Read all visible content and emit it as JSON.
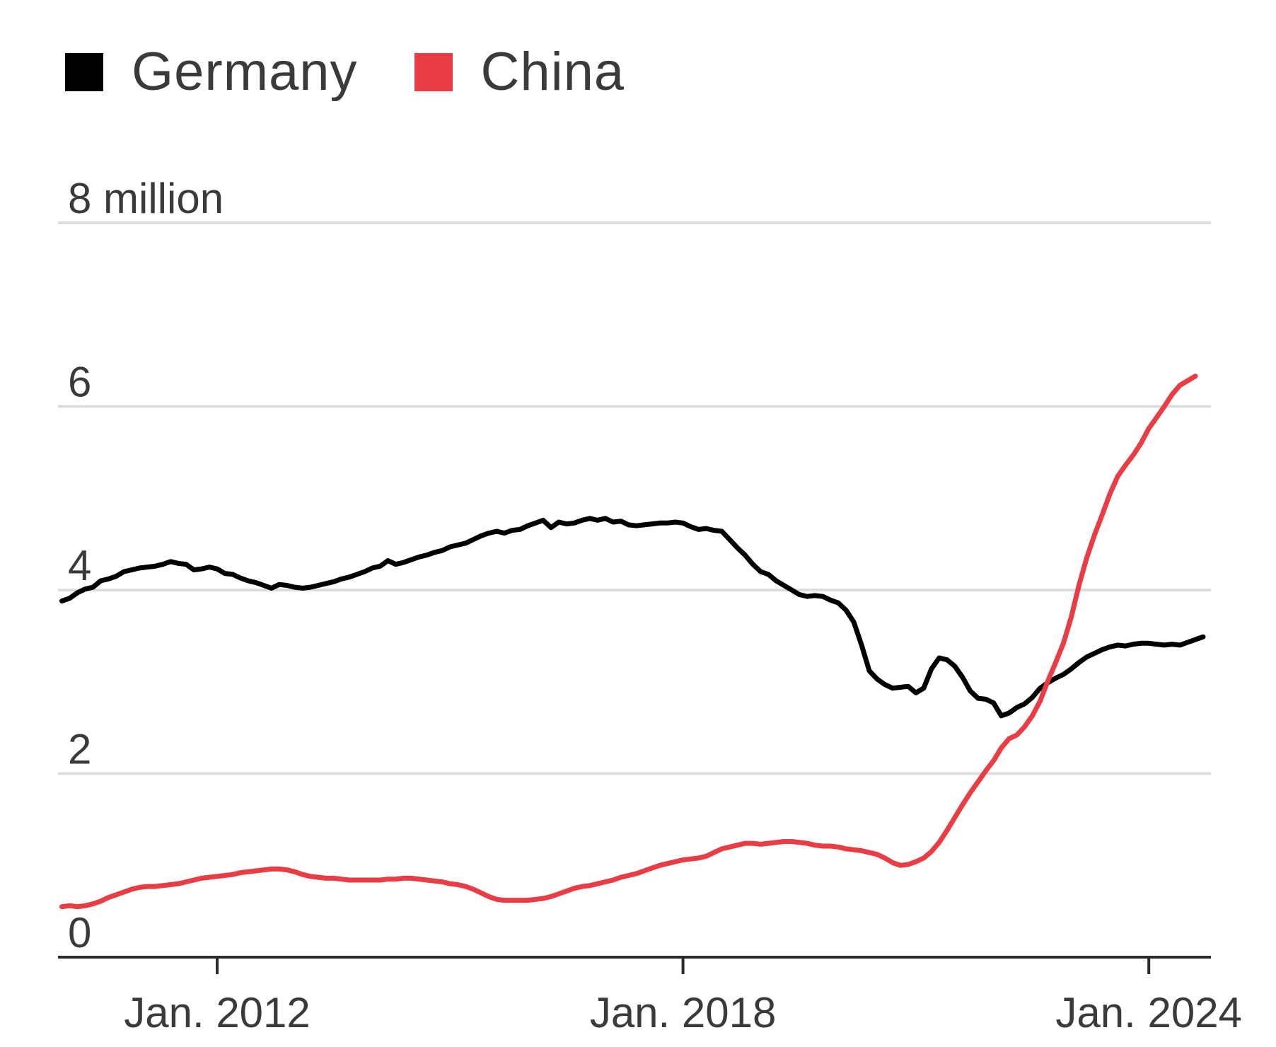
{
  "legend": {
    "germany": {
      "label": "Germany",
      "color": "#000000"
    },
    "china": {
      "label": "China",
      "color": "#e83d44"
    }
  },
  "chart_data": {
    "type": "line",
    "title": "",
    "xlabel": "",
    "ylabel": "",
    "ylim": [
      0,
      8
    ],
    "xlim": [
      2009.95,
      2024.8
    ],
    "y_ticks": [
      {
        "value": 0,
        "label": "0"
      },
      {
        "value": 2,
        "label": "2"
      },
      {
        "value": 4,
        "label": "4"
      },
      {
        "value": 6,
        "label": "6"
      },
      {
        "value": 8,
        "label": "8 million"
      }
    ],
    "x_ticks": [
      {
        "value": 2012,
        "label": "Jan. 2012"
      },
      {
        "value": 2018,
        "label": "Jan. 2018"
      },
      {
        "value": 2024,
        "label": "Jan. 2024"
      }
    ],
    "grid": true,
    "legend_position": "top-left",
    "series": [
      {
        "name": "Germany",
        "color": "#000000",
        "points": [
          [
            2010.0,
            3.88
          ],
          [
            2010.1,
            3.91
          ],
          [
            2010.2,
            3.97
          ],
          [
            2010.3,
            4.01
          ],
          [
            2010.4,
            4.03
          ],
          [
            2010.5,
            4.1
          ],
          [
            2010.6,
            4.12
          ],
          [
            2010.7,
            4.15
          ],
          [
            2010.8,
            4.2
          ],
          [
            2010.9,
            4.22
          ],
          [
            2011.0,
            4.24
          ],
          [
            2011.1,
            4.25
          ],
          [
            2011.2,
            4.26
          ],
          [
            2011.3,
            4.28
          ],
          [
            2011.4,
            4.31
          ],
          [
            2011.5,
            4.29
          ],
          [
            2011.6,
            4.28
          ],
          [
            2011.7,
            4.22
          ],
          [
            2011.8,
            4.23
          ],
          [
            2011.9,
            4.25
          ],
          [
            2012.0,
            4.23
          ],
          [
            2012.1,
            4.18
          ],
          [
            2012.2,
            4.17
          ],
          [
            2012.3,
            4.13
          ],
          [
            2012.4,
            4.1
          ],
          [
            2012.5,
            4.08
          ],
          [
            2012.6,
            4.05
          ],
          [
            2012.7,
            4.02
          ],
          [
            2012.8,
            4.06
          ],
          [
            2012.9,
            4.05
          ],
          [
            2013.0,
            4.03
          ],
          [
            2013.1,
            4.02
          ],
          [
            2013.2,
            4.03
          ],
          [
            2013.3,
            4.05
          ],
          [
            2013.4,
            4.07
          ],
          [
            2013.5,
            4.09
          ],
          [
            2013.6,
            4.12
          ],
          [
            2013.7,
            4.14
          ],
          [
            2013.8,
            4.17
          ],
          [
            2013.9,
            4.2
          ],
          [
            2014.0,
            4.24
          ],
          [
            2014.1,
            4.26
          ],
          [
            2014.2,
            4.32
          ],
          [
            2014.3,
            4.28
          ],
          [
            2014.4,
            4.3
          ],
          [
            2014.5,
            4.33
          ],
          [
            2014.6,
            4.36
          ],
          [
            2014.7,
            4.38
          ],
          [
            2014.8,
            4.41
          ],
          [
            2014.9,
            4.43
          ],
          [
            2015.0,
            4.47
          ],
          [
            2015.1,
            4.49
          ],
          [
            2015.2,
            4.51
          ],
          [
            2015.3,
            4.55
          ],
          [
            2015.4,
            4.59
          ],
          [
            2015.5,
            4.62
          ],
          [
            2015.6,
            4.64
          ],
          [
            2015.7,
            4.62
          ],
          [
            2015.8,
            4.65
          ],
          [
            2015.9,
            4.66
          ],
          [
            2016.0,
            4.7
          ],
          [
            2016.1,
            4.73
          ],
          [
            2016.2,
            4.76
          ],
          [
            2016.3,
            4.68
          ],
          [
            2016.4,
            4.74
          ],
          [
            2016.5,
            4.72
          ],
          [
            2016.6,
            4.73
          ],
          [
            2016.7,
            4.76
          ],
          [
            2016.8,
            4.78
          ],
          [
            2016.9,
            4.76
          ],
          [
            2017.0,
            4.78
          ],
          [
            2017.1,
            4.74
          ],
          [
            2017.2,
            4.75
          ],
          [
            2017.3,
            4.71
          ],
          [
            2017.4,
            4.7
          ],
          [
            2017.5,
            4.71
          ],
          [
            2017.6,
            4.72
          ],
          [
            2017.7,
            4.73
          ],
          [
            2017.8,
            4.73
          ],
          [
            2017.9,
            4.74
          ],
          [
            2018.0,
            4.73
          ],
          [
            2018.1,
            4.69
          ],
          [
            2018.2,
            4.66
          ],
          [
            2018.3,
            4.67
          ],
          [
            2018.4,
            4.65
          ],
          [
            2018.5,
            4.64
          ],
          [
            2018.6,
            4.55
          ],
          [
            2018.7,
            4.46
          ],
          [
            2018.8,
            4.38
          ],
          [
            2018.9,
            4.28
          ],
          [
            2019.0,
            4.2
          ],
          [
            2019.1,
            4.17
          ],
          [
            2019.2,
            4.1
          ],
          [
            2019.3,
            4.05
          ],
          [
            2019.4,
            4.0
          ],
          [
            2019.5,
            3.95
          ],
          [
            2019.6,
            3.93
          ],
          [
            2019.7,
            3.94
          ],
          [
            2019.8,
            3.93
          ],
          [
            2019.9,
            3.89
          ],
          [
            2020.0,
            3.86
          ],
          [
            2020.1,
            3.78
          ],
          [
            2020.2,
            3.65
          ],
          [
            2020.3,
            3.4
          ],
          [
            2020.4,
            3.12
          ],
          [
            2020.5,
            3.03
          ],
          [
            2020.6,
            2.97
          ],
          [
            2020.7,
            2.93
          ],
          [
            2020.8,
            2.94
          ],
          [
            2020.9,
            2.95
          ],
          [
            2021.0,
            2.88
          ],
          [
            2021.1,
            2.93
          ],
          [
            2021.2,
            3.14
          ],
          [
            2021.3,
            3.26
          ],
          [
            2021.4,
            3.24
          ],
          [
            2021.5,
            3.17
          ],
          [
            2021.6,
            3.05
          ],
          [
            2021.7,
            2.9
          ],
          [
            2021.8,
            2.82
          ],
          [
            2021.9,
            2.81
          ],
          [
            2022.0,
            2.77
          ],
          [
            2022.1,
            2.63
          ],
          [
            2022.2,
            2.66
          ],
          [
            2022.3,
            2.72
          ],
          [
            2022.4,
            2.76
          ],
          [
            2022.5,
            2.83
          ],
          [
            2022.6,
            2.93
          ],
          [
            2022.7,
            2.99
          ],
          [
            2022.8,
            3.04
          ],
          [
            2022.9,
            3.08
          ],
          [
            2023.0,
            3.14
          ],
          [
            2023.1,
            3.21
          ],
          [
            2023.2,
            3.27
          ],
          [
            2023.3,
            3.31
          ],
          [
            2023.4,
            3.35
          ],
          [
            2023.5,
            3.38
          ],
          [
            2023.6,
            3.4
          ],
          [
            2023.7,
            3.39
          ],
          [
            2023.8,
            3.41
          ],
          [
            2023.9,
            3.42
          ],
          [
            2024.0,
            3.42
          ],
          [
            2024.1,
            3.41
          ],
          [
            2024.2,
            3.4
          ],
          [
            2024.3,
            3.41
          ],
          [
            2024.4,
            3.4
          ],
          [
            2024.5,
            3.43
          ],
          [
            2024.6,
            3.46
          ],
          [
            2024.7,
            3.49
          ]
        ]
      },
      {
        "name": "China",
        "color": "#e83d44",
        "points": [
          [
            2010.0,
            0.55
          ],
          [
            2010.1,
            0.56
          ],
          [
            2010.2,
            0.55
          ],
          [
            2010.3,
            0.56
          ],
          [
            2010.4,
            0.58
          ],
          [
            2010.5,
            0.61
          ],
          [
            2010.6,
            0.65
          ],
          [
            2010.7,
            0.68
          ],
          [
            2010.8,
            0.71
          ],
          [
            2010.9,
            0.74
          ],
          [
            2011.0,
            0.76
          ],
          [
            2011.1,
            0.77
          ],
          [
            2011.2,
            0.77
          ],
          [
            2011.3,
            0.78
          ],
          [
            2011.4,
            0.79
          ],
          [
            2011.5,
            0.8
          ],
          [
            2011.6,
            0.82
          ],
          [
            2011.7,
            0.84
          ],
          [
            2011.8,
            0.86
          ],
          [
            2011.9,
            0.87
          ],
          [
            2012.0,
            0.88
          ],
          [
            2012.1,
            0.89
          ],
          [
            2012.2,
            0.9
          ],
          [
            2012.3,
            0.92
          ],
          [
            2012.4,
            0.93
          ],
          [
            2012.5,
            0.94
          ],
          [
            2012.6,
            0.95
          ],
          [
            2012.7,
            0.96
          ],
          [
            2012.8,
            0.96
          ],
          [
            2012.9,
            0.95
          ],
          [
            2013.0,
            0.93
          ],
          [
            2013.1,
            0.9
          ],
          [
            2013.2,
            0.88
          ],
          [
            2013.3,
            0.87
          ],
          [
            2013.4,
            0.86
          ],
          [
            2013.5,
            0.86
          ],
          [
            2013.6,
            0.85
          ],
          [
            2013.7,
            0.84
          ],
          [
            2013.8,
            0.84
          ],
          [
            2013.9,
            0.84
          ],
          [
            2014.0,
            0.84
          ],
          [
            2014.1,
            0.84
          ],
          [
            2014.2,
            0.85
          ],
          [
            2014.3,
            0.85
          ],
          [
            2014.4,
            0.86
          ],
          [
            2014.5,
            0.86
          ],
          [
            2014.6,
            0.85
          ],
          [
            2014.7,
            0.84
          ],
          [
            2014.8,
            0.83
          ],
          [
            2014.9,
            0.82
          ],
          [
            2015.0,
            0.8
          ],
          [
            2015.1,
            0.79
          ],
          [
            2015.2,
            0.77
          ],
          [
            2015.3,
            0.74
          ],
          [
            2015.4,
            0.7
          ],
          [
            2015.5,
            0.66
          ],
          [
            2015.6,
            0.63
          ],
          [
            2015.7,
            0.62
          ],
          [
            2015.8,
            0.62
          ],
          [
            2015.9,
            0.62
          ],
          [
            2016.0,
            0.62
          ],
          [
            2016.1,
            0.63
          ],
          [
            2016.2,
            0.64
          ],
          [
            2016.3,
            0.66
          ],
          [
            2016.4,
            0.69
          ],
          [
            2016.5,
            0.72
          ],
          [
            2016.6,
            0.75
          ],
          [
            2016.7,
            0.77
          ],
          [
            2016.8,
            0.78
          ],
          [
            2016.9,
            0.8
          ],
          [
            2017.0,
            0.82
          ],
          [
            2017.1,
            0.84
          ],
          [
            2017.2,
            0.87
          ],
          [
            2017.3,
            0.89
          ],
          [
            2017.4,
            0.91
          ],
          [
            2017.5,
            0.94
          ],
          [
            2017.6,
            0.97
          ],
          [
            2017.7,
            1.0
          ],
          [
            2017.8,
            1.02
          ],
          [
            2017.9,
            1.04
          ],
          [
            2018.0,
            1.06
          ],
          [
            2018.1,
            1.07
          ],
          [
            2018.2,
            1.08
          ],
          [
            2018.3,
            1.1
          ],
          [
            2018.4,
            1.14
          ],
          [
            2018.5,
            1.18
          ],
          [
            2018.6,
            1.2
          ],
          [
            2018.7,
            1.22
          ],
          [
            2018.8,
            1.24
          ],
          [
            2018.9,
            1.24
          ],
          [
            2019.0,
            1.23
          ],
          [
            2019.1,
            1.24
          ],
          [
            2019.2,
            1.25
          ],
          [
            2019.3,
            1.26
          ],
          [
            2019.4,
            1.26
          ],
          [
            2019.5,
            1.25
          ],
          [
            2019.6,
            1.24
          ],
          [
            2019.7,
            1.22
          ],
          [
            2019.8,
            1.21
          ],
          [
            2019.9,
            1.21
          ],
          [
            2020.0,
            1.2
          ],
          [
            2020.1,
            1.18
          ],
          [
            2020.2,
            1.17
          ],
          [
            2020.3,
            1.16
          ],
          [
            2020.4,
            1.14
          ],
          [
            2020.5,
            1.12
          ],
          [
            2020.6,
            1.08
          ],
          [
            2020.7,
            1.03
          ],
          [
            2020.8,
            1.0
          ],
          [
            2020.9,
            1.01
          ],
          [
            2021.0,
            1.04
          ],
          [
            2021.1,
            1.08
          ],
          [
            2021.2,
            1.15
          ],
          [
            2021.3,
            1.25
          ],
          [
            2021.4,
            1.38
          ],
          [
            2021.5,
            1.52
          ],
          [
            2021.6,
            1.66
          ],
          [
            2021.7,
            1.79
          ],
          [
            2021.8,
            1.91
          ],
          [
            2021.9,
            2.03
          ],
          [
            2022.0,
            2.14
          ],
          [
            2022.1,
            2.28
          ],
          [
            2022.2,
            2.38
          ],
          [
            2022.3,
            2.42
          ],
          [
            2022.4,
            2.51
          ],
          [
            2022.5,
            2.63
          ],
          [
            2022.6,
            2.79
          ],
          [
            2022.7,
            3.01
          ],
          [
            2022.8,
            3.21
          ],
          [
            2022.9,
            3.42
          ],
          [
            2023.0,
            3.7
          ],
          [
            2023.1,
            4.05
          ],
          [
            2023.2,
            4.35
          ],
          [
            2023.3,
            4.6
          ],
          [
            2023.4,
            4.82
          ],
          [
            2023.5,
            5.05
          ],
          [
            2023.6,
            5.24
          ],
          [
            2023.7,
            5.36
          ],
          [
            2023.8,
            5.47
          ],
          [
            2023.9,
            5.6
          ],
          [
            2024.0,
            5.76
          ],
          [
            2024.1,
            5.88
          ],
          [
            2024.2,
            6.0
          ],
          [
            2024.3,
            6.13
          ],
          [
            2024.4,
            6.23
          ],
          [
            2024.5,
            6.28
          ],
          [
            2024.6,
            6.33
          ]
        ]
      }
    ]
  }
}
